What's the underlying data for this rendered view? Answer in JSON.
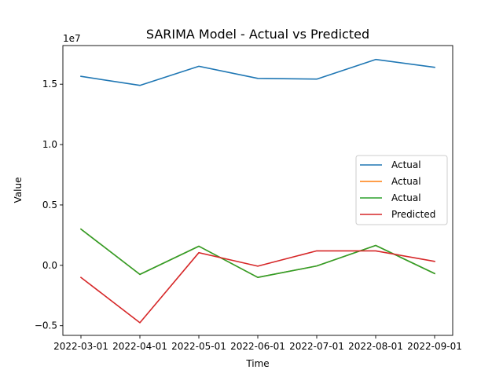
{
  "chart_data": {
    "type": "line",
    "title": "SARIMA Model - Actual vs Predicted",
    "xlabel": "Time",
    "ylabel": "Value",
    "y_multiplier_label": "1e7",
    "x": [
      "2022-03-01",
      "2022-04-01",
      "2022-05-01",
      "2022-06-01",
      "2022-07-01",
      "2022-08-01",
      "2022-09-01"
    ],
    "y_ticks": [
      -0.5,
      0.0,
      0.5,
      1.0,
      1.5
    ],
    "y_tick_labels": [
      "−0.5",
      "0.0",
      "0.5",
      "1.0",
      "1.5"
    ],
    "ylim": [
      -0.58,
      1.82
    ],
    "grid": false,
    "legend_position": "center-right",
    "series": [
      {
        "name": "Actual",
        "color": "#1f77b4",
        "values": [
          1.565,
          1.49,
          1.648,
          1.548,
          1.542,
          1.705,
          1.64
        ]
      },
      {
        "name": "Actual",
        "color": "#ff7f0e",
        "values": [
          0.3,
          -0.075,
          0.158,
          -0.1,
          -0.005,
          0.165,
          -0.068
        ]
      },
      {
        "name": "Actual",
        "color": "#2ca02c",
        "values": [
          0.3,
          -0.075,
          0.158,
          -0.1,
          -0.005,
          0.165,
          -0.068
        ]
      },
      {
        "name": "Predicted",
        "color": "#d62728",
        "values": [
          -0.1,
          -0.475,
          0.105,
          -0.007,
          0.12,
          0.12,
          0.033
        ]
      }
    ]
  }
}
